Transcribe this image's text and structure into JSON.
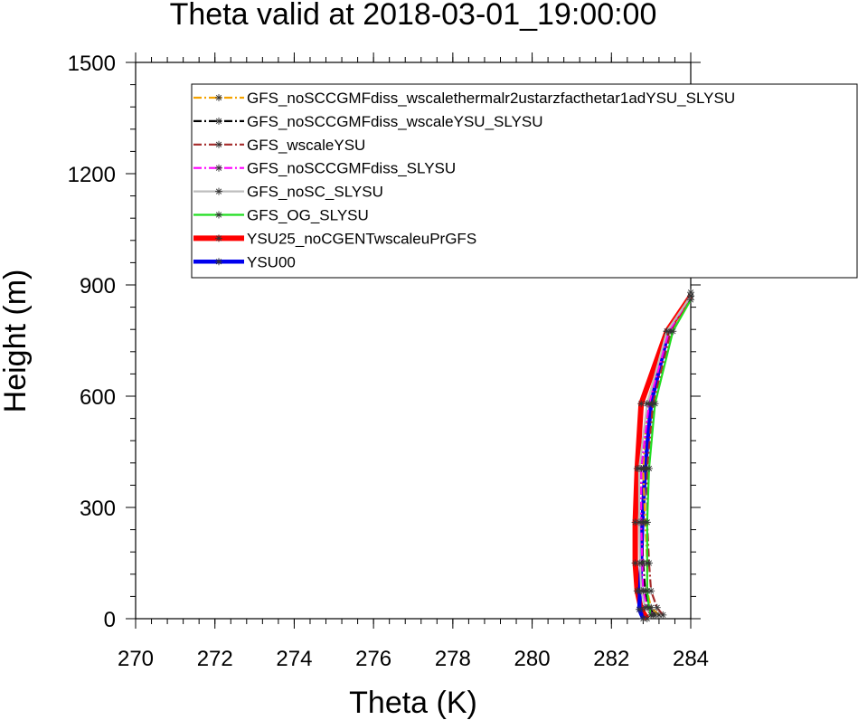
{
  "chart_data": {
    "type": "line",
    "title": "Theta valid at 2018-03-01_19:00:00",
    "xlabel": "Theta (K)",
    "ylabel": "Height (m)",
    "xlim": [
      270,
      284
    ],
    "ylim": [
      0,
      1500
    ],
    "x_ticks": [
      "270",
      "272",
      "274",
      "276",
      "278",
      "280",
      "282",
      "284"
    ],
    "y_ticks": [
      "0",
      "300",
      "600",
      "900",
      "1200",
      "1500"
    ],
    "legend_position": "top-right",
    "series": [
      {
        "name": "GFS_noSCCGMFdiss_wscalethermalr2ustarzfacthetar1adYSU_SLYSU",
        "color": "#f5a300",
        "dash": "dashdot",
        "points": [
          [
            283.2,
            10
          ],
          [
            283.0,
            30
          ],
          [
            282.9,
            75
          ],
          [
            282.9,
            150
          ],
          [
            282.85,
            260
          ],
          [
            282.8,
            405
          ],
          [
            282.9,
            580
          ],
          [
            283.4,
            775
          ],
          [
            284.0,
            870
          ]
        ]
      },
      {
        "name": "GFS_noSCCGMFdiss_wscaleYSU_SLYSU",
        "color": "#000000",
        "dash": "dashdot",
        "points": [
          [
            283.1,
            10
          ],
          [
            282.95,
            30
          ],
          [
            282.85,
            75
          ],
          [
            282.8,
            150
          ],
          [
            282.75,
            260
          ],
          [
            282.75,
            405
          ],
          [
            282.95,
            580
          ],
          [
            283.45,
            775
          ],
          [
            284.0,
            870
          ]
        ]
      },
      {
        "name": "GFS_wscaleYSU",
        "color": "#a52a2a",
        "dash": "dashdot",
        "points": [
          [
            283.3,
            10
          ],
          [
            283.15,
            30
          ],
          [
            283.0,
            75
          ],
          [
            282.95,
            150
          ],
          [
            282.9,
            260
          ],
          [
            282.9,
            405
          ],
          [
            283.05,
            580
          ],
          [
            283.5,
            775
          ],
          [
            284.0,
            880
          ]
        ]
      },
      {
        "name": "GFS_noSCCGMFdiss_SLYSU",
        "color": "#ff00ff",
        "dash": "dashdot",
        "points": [
          [
            283.05,
            10
          ],
          [
            282.9,
            30
          ],
          [
            282.8,
            75
          ],
          [
            282.78,
            150
          ],
          [
            282.75,
            260
          ],
          [
            282.75,
            405
          ],
          [
            282.95,
            580
          ],
          [
            283.45,
            775
          ],
          [
            284.0,
            870
          ]
        ]
      },
      {
        "name": "GFS_noSC_SLYSU",
        "color": "#bdbdbd",
        "dash": "solid",
        "points": [
          [
            283.0,
            10
          ],
          [
            282.85,
            30
          ],
          [
            282.75,
            75
          ],
          [
            282.72,
            150
          ],
          [
            282.7,
            260
          ],
          [
            282.7,
            405
          ],
          [
            282.9,
            580
          ],
          [
            283.4,
            775
          ],
          [
            284.0,
            870
          ]
        ]
      },
      {
        "name": "GFS_OG_SLYSU",
        "color": "#22dd22",
        "dash": "solid",
        "points": [
          [
            283.0,
            10
          ],
          [
            282.95,
            30
          ],
          [
            282.9,
            75
          ],
          [
            282.9,
            150
          ],
          [
            282.9,
            260
          ],
          [
            282.95,
            405
          ],
          [
            283.1,
            580
          ],
          [
            283.55,
            775
          ],
          [
            284.0,
            860
          ]
        ]
      },
      {
        "name": "YSU25_noCGENTwscaleuPrGFS",
        "color": "#ff0000",
        "dash": "solid",
        "points": [
          [
            282.9,
            0
          ],
          [
            282.75,
            25
          ],
          [
            282.65,
            75
          ],
          [
            282.6,
            150
          ],
          [
            282.6,
            260
          ],
          [
            282.65,
            405
          ],
          [
            282.75,
            580
          ],
          [
            283.4,
            775
          ],
          [
            284.0,
            870
          ]
        ]
      },
      {
        "name": "YSU00",
        "color": "#0000ee",
        "dash": "solid",
        "points": [
          [
            282.8,
            0
          ],
          [
            282.7,
            25
          ],
          [
            282.72,
            75
          ],
          [
            282.75,
            150
          ],
          [
            282.78,
            260
          ],
          [
            282.85,
            405
          ],
          [
            283.0,
            580
          ],
          [
            283.4,
            760
          ]
        ]
      }
    ]
  }
}
